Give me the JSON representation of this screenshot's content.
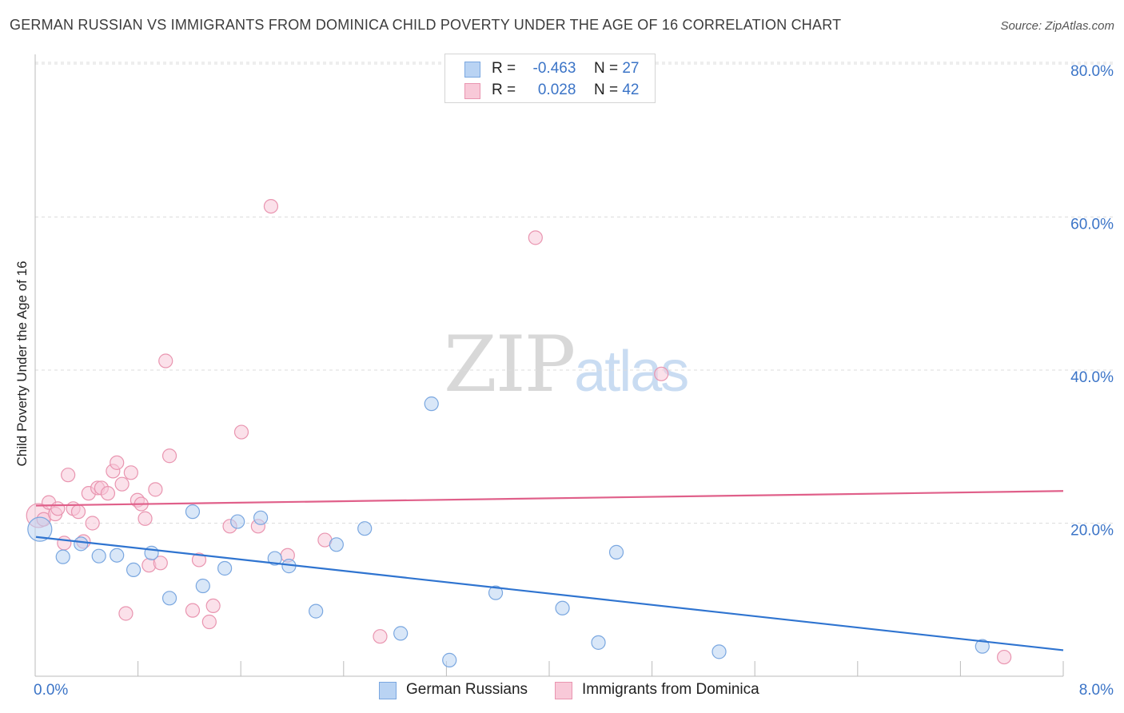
{
  "title": "GERMAN RUSSIAN VS IMMIGRANTS FROM DOMINICA CHILD POVERTY UNDER THE AGE OF 16 CORRELATION CHART",
  "source": "Source: ZipAtlas.com",
  "watermark": {
    "zip": "ZIP",
    "atlas": "atlas"
  },
  "colors": {
    "series1_fill": "#b9d3f3",
    "series1_stroke": "#7aa7e0",
    "series1_line": "#2f74d0",
    "series2_fill": "#f8c9d8",
    "series2_stroke": "#e995b0",
    "series2_line": "#e0608a",
    "axis_text": "#3b74c7"
  },
  "legend_top": [
    {
      "r_label": "R =",
      "r_value": "-0.463",
      "n_label": "N =",
      "n_value": "27"
    },
    {
      "r_label": "R =",
      "r_value": "0.028",
      "n_label": "N =",
      "n_value": "42"
    }
  ],
  "chart_data": {
    "type": "scatter",
    "title": "GERMAN RUSSIAN VS IMMIGRANTS FROM DOMINICA CHILD POVERTY UNDER THE AGE OF 16 CORRELATION CHART",
    "xlabel": "",
    "ylabel": "Child Poverty Under the Age of 16",
    "xlim": [
      0,
      8
    ],
    "ylim": [
      0,
      84
    ],
    "x_tick_labels": [
      "0.0%",
      "8.0%"
    ],
    "y_ticks": [
      20,
      40,
      60,
      80
    ],
    "y_tick_labels": [
      "20.0%",
      "40.0%",
      "60.0%",
      "80.0%"
    ],
    "grid": true,
    "legend_position": "bottom",
    "series": [
      {
        "name": "German Russians",
        "r": -0.463,
        "n": 27,
        "trend": {
          "x": [
            0,
            8
          ],
          "y": [
            18.2,
            3.4
          ]
        },
        "points": [
          {
            "x": 0.03,
            "y": 19.2,
            "big": true
          },
          {
            "x": 0.21,
            "y": 15.6
          },
          {
            "x": 0.35,
            "y": 17.3
          },
          {
            "x": 0.49,
            "y": 15.7
          },
          {
            "x": 0.63,
            "y": 15.8
          },
          {
            "x": 0.76,
            "y": 13.9
          },
          {
            "x": 0.9,
            "y": 16.1
          },
          {
            "x": 1.04,
            "y": 10.2
          },
          {
            "x": 1.22,
            "y": 21.5
          },
          {
            "x": 1.3,
            "y": 11.8
          },
          {
            "x": 1.47,
            "y": 14.1
          },
          {
            "x": 1.57,
            "y": 20.2
          },
          {
            "x": 1.75,
            "y": 20.7
          },
          {
            "x": 1.86,
            "y": 15.4
          },
          {
            "x": 1.97,
            "y": 14.4
          },
          {
            "x": 2.18,
            "y": 8.5
          },
          {
            "x": 2.34,
            "y": 17.2
          },
          {
            "x": 2.56,
            "y": 19.3
          },
          {
            "x": 2.84,
            "y": 5.6
          },
          {
            "x": 3.08,
            "y": 35.6
          },
          {
            "x": 3.22,
            "y": 2.1
          },
          {
            "x": 3.58,
            "y": 10.9
          },
          {
            "x": 4.1,
            "y": 8.9
          },
          {
            "x": 4.38,
            "y": 4.4
          },
          {
            "x": 4.52,
            "y": 16.2
          },
          {
            "x": 5.32,
            "y": 3.2
          },
          {
            "x": 7.37,
            "y": 3.9
          }
        ]
      },
      {
        "name": "Immigrants from Dominica",
        "r": 0.028,
        "n": 42,
        "trend": {
          "x": [
            0,
            8
          ],
          "y": [
            22.3,
            24.2
          ]
        },
        "points": [
          {
            "x": 0.02,
            "y": 21.0,
            "big": true
          },
          {
            "x": 0.06,
            "y": 20.5
          },
          {
            "x": 0.1,
            "y": 22.7
          },
          {
            "x": 0.15,
            "y": 21.2
          },
          {
            "x": 0.17,
            "y": 21.9
          },
          {
            "x": 0.25,
            "y": 26.3
          },
          {
            "x": 0.22,
            "y": 17.4
          },
          {
            "x": 0.29,
            "y": 21.9
          },
          {
            "x": 0.33,
            "y": 21.5
          },
          {
            "x": 0.37,
            "y": 17.6
          },
          {
            "x": 0.41,
            "y": 23.9
          },
          {
            "x": 0.44,
            "y": 20.0
          },
          {
            "x": 0.48,
            "y": 24.6
          },
          {
            "x": 0.51,
            "y": 24.6
          },
          {
            "x": 0.56,
            "y": 23.9
          },
          {
            "x": 0.6,
            "y": 26.8
          },
          {
            "x": 0.63,
            "y": 27.9
          },
          {
            "x": 0.67,
            "y": 25.1
          },
          {
            "x": 0.7,
            "y": 8.2
          },
          {
            "x": 0.74,
            "y": 26.6
          },
          {
            "x": 0.79,
            "y": 23.0
          },
          {
            "x": 0.82,
            "y": 22.5
          },
          {
            "x": 0.85,
            "y": 20.6
          },
          {
            "x": 0.88,
            "y": 14.5
          },
          {
            "x": 0.93,
            "y": 24.4
          },
          {
            "x": 0.97,
            "y": 14.8
          },
          {
            "x": 1.01,
            "y": 41.2
          },
          {
            "x": 1.04,
            "y": 28.8
          },
          {
            "x": 1.22,
            "y": 8.6
          },
          {
            "x": 1.27,
            "y": 15.2
          },
          {
            "x": 1.35,
            "y": 7.1
          },
          {
            "x": 1.38,
            "y": 9.2
          },
          {
            "x": 1.51,
            "y": 19.6
          },
          {
            "x": 1.6,
            "y": 31.9
          },
          {
            "x": 1.73,
            "y": 19.6
          },
          {
            "x": 1.83,
            "y": 61.4
          },
          {
            "x": 1.96,
            "y": 15.8
          },
          {
            "x": 2.25,
            "y": 17.8
          },
          {
            "x": 2.68,
            "y": 5.2
          },
          {
            "x": 3.89,
            "y": 57.3
          },
          {
            "x": 4.87,
            "y": 39.5
          },
          {
            "x": 7.54,
            "y": 2.5
          }
        ]
      }
    ]
  }
}
